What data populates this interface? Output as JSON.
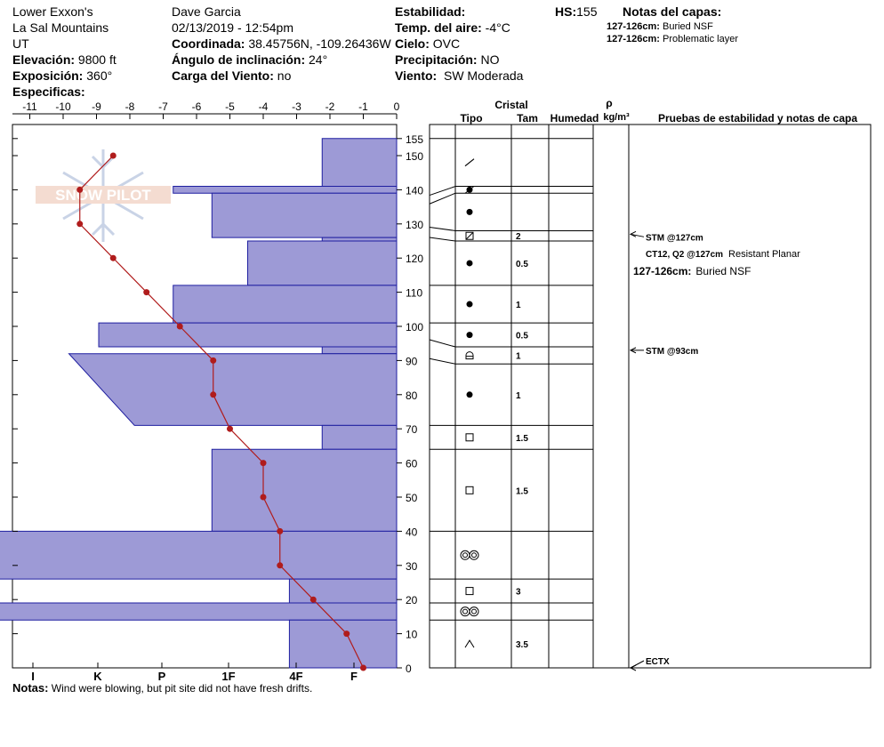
{
  "header": {
    "location": "Lower Exxon's",
    "range": "La Sal Mountains",
    "state": "UT",
    "elevation_label": "Elevación:",
    "elevation": "9800 ft",
    "aspect_label": "Exposición:",
    "aspect": "360°",
    "specifics_label": "Especificas:",
    "observer": "Dave Garcia",
    "datetime": "02/13/2019 - 12:54pm",
    "coord_label": "Coordinada:",
    "coord": "38.45756N, -109.26436W",
    "slope_label": "Ángulo de inclinación:",
    "slope": "24°",
    "wind_load_label": "Carga del Viento:",
    "wind_load": "no",
    "stability_label": "Estabilidad:",
    "air_temp_label": "Temp. del aire:",
    "air_temp": "-4°C",
    "sky_label": "Cielo:",
    "sky": "OVC",
    "precip_label": "Precipitación:",
    "precip": "NO",
    "wind_label": "Viento:",
    "wind": "SW Moderada",
    "hs_label": "HS:",
    "hs": "155",
    "layer_notes_label": "Notas del capas:",
    "layer_notes": [
      {
        "range": "127-126cm:",
        "text": "Buried NSF"
      },
      {
        "range": "127-126cm:",
        "text": "Problematic layer"
      }
    ]
  },
  "watermark": "SNOW PILOT",
  "notes_label": "Notas:",
  "notes": "Wind were blowing, but pit site did not have fresh drifts.",
  "table": {
    "crystal_label": "Cristal",
    "type_label": "Tipo",
    "size_label": "Tam",
    "humidity_label": "Humedad",
    "rho_label": "ρ",
    "density_unit": "kg/m³",
    "tests_label": "Pruebas de estabilidad y notas de capa"
  },
  "chart_data": {
    "type": "snow-profile",
    "temperature_axis": {
      "min": -11,
      "max": 0,
      "ticks": [
        "-11",
        "-10",
        "-9",
        "-8",
        "-7",
        "-6",
        "-5",
        "-4",
        "-3",
        "-2",
        "-1",
        "0"
      ]
    },
    "height_axis": {
      "min": 0,
      "max": 155,
      "ticks": [
        0,
        10,
        20,
        30,
        40,
        50,
        60,
        70,
        80,
        90,
        100,
        110,
        120,
        130,
        140,
        150,
        155
      ]
    },
    "hardness_axis": {
      "labels": [
        "I",
        "K",
        "P",
        "1F",
        "4F",
        "F"
      ]
    },
    "temperature_profile": [
      {
        "t": -8.5,
        "h": 150
      },
      {
        "t": -9.5,
        "h": 140
      },
      {
        "t": -9.5,
        "h": 130
      },
      {
        "t": -8.5,
        "h": 120
      },
      {
        "t": -7.5,
        "h": 110
      },
      {
        "t": -6.5,
        "h": 100
      },
      {
        "t": -5.5,
        "h": 90
      },
      {
        "t": -5.5,
        "h": 80
      },
      {
        "t": -5.0,
        "h": 70
      },
      {
        "t": -4.0,
        "h": 60
      },
      {
        "t": -4.0,
        "h": 50
      },
      {
        "t": -3.5,
        "h": 40
      },
      {
        "t": -3.5,
        "h": 30
      },
      {
        "t": -2.5,
        "h": 20
      },
      {
        "t": -1.5,
        "h": 10
      },
      {
        "t": -1.0,
        "h": 0
      }
    ],
    "hardness_profile": [
      {
        "top": 155,
        "bottom": 141,
        "hardness": 1.25,
        "hardness_bottom": 1.25
      },
      {
        "top": 141,
        "bottom": 139,
        "hardness": 3.75,
        "hardness_bottom": 3.75
      },
      {
        "top": 139,
        "bottom": 126,
        "hardness": 3.1,
        "hardness_bottom": 3.1
      },
      {
        "top": 126,
        "bottom": 125,
        "hardness": 1.25,
        "hardness_bottom": 1.25
      },
      {
        "top": 125,
        "bottom": 112,
        "hardness": 2.5,
        "hardness_bottom": 2.5
      },
      {
        "top": 112,
        "bottom": 101,
        "hardness": 3.75,
        "hardness_bottom": 3.75
      },
      {
        "top": 101,
        "bottom": 94,
        "hardness": 5.0,
        "hardness_bottom": 5.0
      },
      {
        "top": 94,
        "bottom": 92,
        "hardness": 1.25,
        "hardness_bottom": 1.25
      },
      {
        "top": 92,
        "bottom": 71,
        "hardness": 5.5,
        "hardness_bottom": 4.4
      },
      {
        "top": 71,
        "bottom": 64,
        "hardness": 1.25,
        "hardness_bottom": 1.25
      },
      {
        "top": 64,
        "bottom": 40,
        "hardness": 3.1,
        "hardness_bottom": 3.1
      },
      {
        "top": 40,
        "bottom": 26,
        "hardness": 6.8,
        "hardness_bottom": 6.8
      },
      {
        "top": 26,
        "bottom": 19,
        "hardness": 1.8,
        "hardness_bottom": 1.8
      },
      {
        "top": 19,
        "bottom": 14,
        "hardness": 6.8,
        "hardness_bottom": 6.8
      },
      {
        "top": 14,
        "bottom": 0,
        "hardness": 1.8,
        "hardness_bottom": 1.8
      }
    ],
    "layers": [
      {
        "top": 155,
        "bottom": 141,
        "type": "precip-particles",
        "size": ""
      },
      {
        "top": 141,
        "bottom": 139,
        "type": "rounded-mixed",
        "size": ""
      },
      {
        "top": 139,
        "bottom": 128,
        "type": "rounded",
        "size": ""
      },
      {
        "top": 128,
        "bottom": 125,
        "type": "faceted-rounded",
        "size": "2"
      },
      {
        "top": 125,
        "bottom": 112,
        "type": "rounded",
        "size": "0.5"
      },
      {
        "top": 112,
        "bottom": 101,
        "type": "rounded",
        "size": "1"
      },
      {
        "top": 101,
        "bottom": 94,
        "type": "rounded",
        "size": "0.5"
      },
      {
        "top": 94,
        "bottom": 89,
        "type": "rounded-faceted",
        "size": "1"
      },
      {
        "top": 89,
        "bottom": 71,
        "type": "rounded",
        "size": "1"
      },
      {
        "top": 71,
        "bottom": 64,
        "type": "faceted",
        "size": "1.5"
      },
      {
        "top": 64,
        "bottom": 40,
        "type": "faceted",
        "size": "1.5"
      },
      {
        "top": 40,
        "bottom": 26,
        "type": "melt-forms",
        "size": ""
      },
      {
        "top": 26,
        "bottom": 19,
        "type": "faceted",
        "size": "3"
      },
      {
        "top": 19,
        "bottom": 14,
        "type": "melt-forms",
        "size": ""
      },
      {
        "top": 14,
        "bottom": 0,
        "type": "depth-hoar",
        "size": "3.5"
      }
    ],
    "stability_tests": [
      {
        "h": 127,
        "label": "STM @127cm"
      },
      {
        "h": 93,
        "label": "STM @93cm"
      },
      {
        "h": 0,
        "label": "ECTX"
      }
    ],
    "annotations": [
      {
        "label": "CT12, Q2 @127cm",
        "text": "Resistant Planar"
      },
      {
        "label": "127-126cm:",
        "text": "Buried NSF"
      }
    ]
  }
}
